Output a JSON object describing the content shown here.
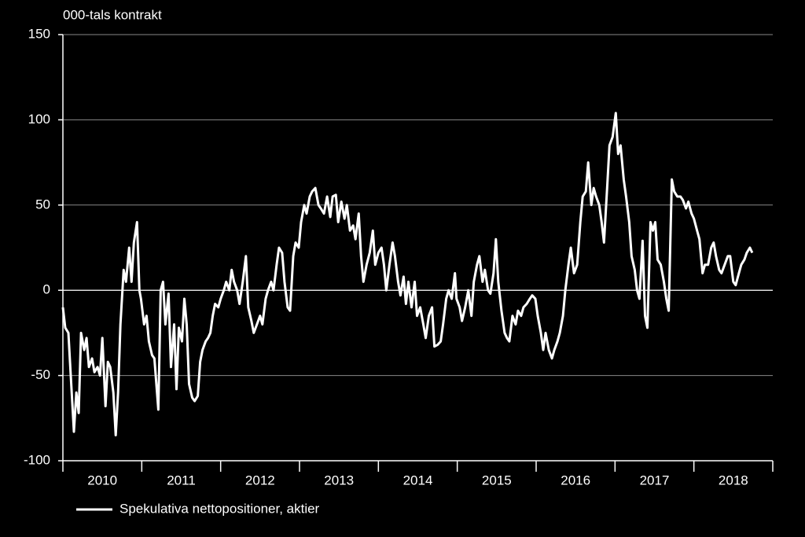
{
  "chart_data": {
    "type": "line",
    "y_axis_label": "000-tals kontrakt",
    "x": [
      2010.0,
      2010.03,
      2010.07,
      2010.1,
      2010.14,
      2010.17,
      2010.2,
      2010.23,
      2010.27,
      2010.3,
      2010.33,
      2010.37,
      2010.4,
      2010.44,
      2010.47,
      2010.5,
      2010.54,
      2010.57,
      2010.6,
      2010.64,
      2010.67,
      2010.7,
      2010.73,
      2010.77,
      2010.8,
      2010.84,
      2010.87,
      2010.9,
      2010.94,
      2010.97,
      2010.99,
      2011.03,
      2011.06,
      2011.09,
      2011.13,
      2011.16,
      2011.21,
      2011.24,
      2011.27,
      2011.3,
      2011.34,
      2011.37,
      2011.41,
      2011.44,
      2011.47,
      2011.51,
      2011.54,
      2011.57,
      2011.6,
      2011.64,
      2011.67,
      2011.71,
      2011.74,
      2011.77,
      2011.81,
      2011.84,
      2011.87,
      2011.9,
      2011.93,
      2011.97,
      2012.0,
      2012.04,
      2012.07,
      2012.11,
      2012.14,
      2012.17,
      2012.21,
      2012.24,
      2012.28,
      2012.32,
      2012.35,
      2012.39,
      2012.42,
      2012.46,
      2012.5,
      2012.53,
      2012.57,
      2012.6,
      2012.64,
      2012.67,
      2012.71,
      2012.74,
      2012.78,
      2012.81,
      2012.85,
      2012.88,
      2012.92,
      2012.95,
      2012.99,
      2013.02,
      2013.06,
      2013.09,
      2013.13,
      2013.16,
      2013.2,
      2013.24,
      2013.27,
      2013.31,
      2013.35,
      2013.39,
      2013.42,
      2013.46,
      2013.49,
      2013.53,
      2013.57,
      2013.6,
      2013.64,
      2013.68,
      2013.71,
      2013.75,
      2013.78,
      2013.81,
      2013.85,
      2013.89,
      2013.93,
      2013.96,
      2014.0,
      2014.04,
      2014.07,
      2014.1,
      2014.14,
      2014.18,
      2014.21,
      2014.25,
      2014.28,
      2014.32,
      2014.35,
      2014.38,
      2014.42,
      2014.46,
      2014.49,
      2014.53,
      2014.57,
      2014.6,
      2014.64,
      2014.68,
      2014.71,
      2014.75,
      2014.79,
      2014.82,
      2014.86,
      2014.89,
      2014.93,
      2014.97,
      2014.99,
      2015.03,
      2015.06,
      2015.1,
      2015.14,
      2015.18,
      2015.21,
      2015.25,
      2015.28,
      2015.32,
      2015.35,
      2015.39,
      2015.42,
      2015.46,
      2015.49,
      2015.52,
      2015.56,
      2015.6,
      2015.63,
      2015.66,
      2015.7,
      2015.74,
      2015.77,
      2015.81,
      2015.84,
      2015.88,
      2015.92,
      2015.95,
      2015.99,
      2016.02,
      2016.06,
      2016.09,
      2016.12,
      2016.16,
      2016.2,
      2016.23,
      2016.27,
      2016.3,
      2016.34,
      2016.37,
      2016.41,
      2016.44,
      2016.48,
      2016.52,
      2016.56,
      2016.59,
      2016.63,
      2016.66,
      2016.7,
      2016.73,
      2016.76,
      2016.8,
      2016.83,
      2016.86,
      2016.9,
      2016.93,
      2016.97,
      2017.01,
      2017.04,
      2017.07,
      2017.11,
      2017.14,
      2017.18,
      2017.21,
      2017.25,
      2017.28,
      2017.31,
      2017.35,
      2017.38,
      2017.41,
      2017.45,
      2017.48,
      2017.51,
      2017.54,
      2017.58,
      2017.62,
      2017.65,
      2017.68,
      2017.72,
      2017.75,
      2017.79,
      2017.83,
      2017.86,
      2017.9,
      2017.93,
      2017.97,
      2018.0,
      2018.04,
      2018.07,
      2018.11,
      2018.14,
      2018.18,
      2018.22,
      2018.25,
      2018.28,
      2018.32,
      2018.35,
      2018.39,
      2018.43,
      2018.46,
      2018.5,
      2018.53,
      2018.57,
      2018.6,
      2018.64,
      2018.67,
      2018.71,
      2018.74
    ],
    "series": [
      {
        "name": "Spekulativa nettopositioner, aktier",
        "color": "#ffffff",
        "values": [
          -10,
          -22,
          -25,
          -50,
          -83,
          -60,
          -72,
          -25,
          -35,
          -28,
          -45,
          -40,
          -48,
          -45,
          -50,
          -28,
          -68,
          -42,
          -45,
          -60,
          -85,
          -60,
          -20,
          12,
          5,
          25,
          5,
          28,
          40,
          0,
          -5,
          -20,
          -15,
          -30,
          -38,
          -40,
          -70,
          0,
          5,
          -20,
          -2,
          -45,
          -20,
          -58,
          -22,
          -30,
          -5,
          -20,
          -55,
          -63,
          -65,
          -62,
          -42,
          -35,
          -30,
          -28,
          -25,
          -15,
          -8,
          -10,
          -5,
          0,
          5,
          0,
          12,
          5,
          0,
          -8,
          5,
          20,
          -10,
          -18,
          -25,
          -20,
          -15,
          -20,
          -5,
          0,
          5,
          0,
          15,
          25,
          22,
          5,
          -10,
          -12,
          20,
          28,
          25,
          40,
          50,
          45,
          55,
          58,
          60,
          50,
          48,
          45,
          55,
          43,
          55,
          56,
          40,
          52,
          42,
          50,
          35,
          38,
          30,
          45,
          20,
          5,
          15,
          22,
          35,
          15,
          22,
          25,
          15,
          0,
          15,
          28,
          20,
          5,
          -3,
          8,
          -8,
          5,
          -10,
          5,
          -15,
          -10,
          -20,
          -28,
          -15,
          -10,
          -33,
          -32,
          -30,
          -20,
          -5,
          0,
          -5,
          10,
          -5,
          -10,
          -18,
          -10,
          0,
          -15,
          5,
          15,
          20,
          5,
          12,
          0,
          -2,
          10,
          30,
          5,
          -12,
          -25,
          -28,
          -30,
          -15,
          -20,
          -12,
          -15,
          -10,
          -8,
          -5,
          -3,
          -5,
          -15,
          -25,
          -35,
          -25,
          -35,
          -40,
          -35,
          -30,
          -25,
          -15,
          0,
          15,
          25,
          10,
          15,
          40,
          55,
          58,
          75,
          50,
          60,
          55,
          50,
          40,
          28,
          60,
          85,
          90,
          104,
          80,
          85,
          65,
          55,
          40,
          20,
          12,
          0,
          -5,
          29,
          -15,
          -22,
          40,
          35,
          40,
          18,
          15,
          5,
          -5,
          -12,
          65,
          58,
          55,
          55,
          53,
          48,
          52,
          45,
          42,
          35,
          30,
          10,
          15,
          15,
          25,
          28,
          20,
          12,
          10,
          15,
          20,
          20,
          5,
          3,
          10,
          15,
          18,
          22,
          25,
          22
        ]
      }
    ],
    "xlim": [
      2010,
      2019
    ],
    "xticks": [
      {
        "value": 2010.5,
        "label": "2010"
      },
      {
        "value": 2011.5,
        "label": "2011"
      },
      {
        "value": 2012.5,
        "label": "2012"
      },
      {
        "value": 2013.5,
        "label": "2013"
      },
      {
        "value": 2014.5,
        "label": "2014"
      },
      {
        "value": 2015.5,
        "label": "2015"
      },
      {
        "value": 2016.5,
        "label": "2016"
      },
      {
        "value": 2017.5,
        "label": "2017"
      },
      {
        "value": 2018.5,
        "label": "2018"
      }
    ],
    "ylim": [
      -100,
      150
    ],
    "yticks": [
      -100,
      -50,
      0,
      50,
      100,
      150
    ],
    "grid": true,
    "legend": "bottom-left"
  }
}
